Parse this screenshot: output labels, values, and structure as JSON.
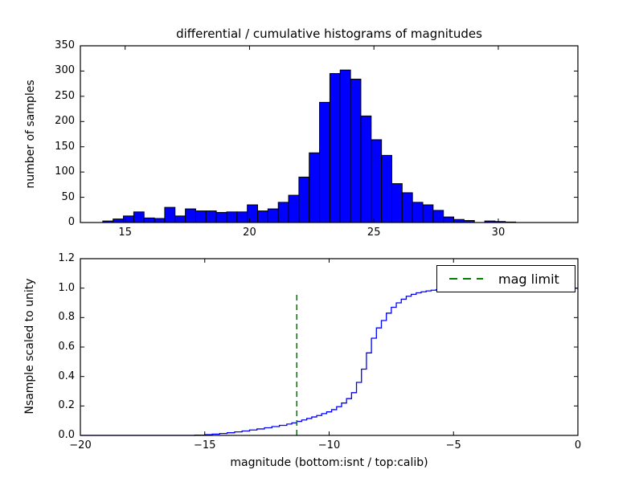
{
  "figure": {
    "background": "#ffffff",
    "text_color": "#000000"
  },
  "chart_data": [
    {
      "type": "bar",
      "subplot": "top",
      "title": "differential / cumulative histograms of magnitudes",
      "ylabel": "number of samples",
      "bar_color": "#0000ff",
      "bar_edge_color": "#000000",
      "bin_start": 14.1,
      "bin_width": 0.415,
      "values": [
        3,
        7,
        13,
        21,
        9,
        8,
        30,
        13,
        27,
        23,
        23,
        20,
        21,
        21,
        35,
        23,
        27,
        40,
        54,
        90,
        138,
        238,
        295,
        302,
        284,
        211,
        164,
        133,
        77,
        59,
        40,
        35,
        24,
        11,
        6,
        4,
        0,
        3,
        2,
        1
      ],
      "xlim": [
        13.2,
        33.2
      ],
      "ylim": [
        0,
        350
      ],
      "xticks": [
        15,
        20,
        25,
        30
      ],
      "xtick_labels": [
        "15",
        "20",
        "25",
        "30"
      ],
      "yticks": [
        0,
        50,
        100,
        150,
        200,
        250,
        300,
        350
      ],
      "ytick_labels": [
        "0",
        "50",
        "100",
        "150",
        "200",
        "250",
        "300",
        "350"
      ],
      "grid": false
    },
    {
      "type": "line",
      "subplot": "bottom",
      "style": "step",
      "ylabel": "Nsample scaled to unity",
      "xlabel": "magnitude (bottom:isnt / top:calib)",
      "line_color": "#0000ff",
      "xlim": [
        -20,
        0
      ],
      "ylim": [
        0,
        1.2
      ],
      "xticks": [
        -20,
        -15,
        -10,
        -5,
        0
      ],
      "xtick_labels": [
        "−20",
        "−15",
        "−10",
        "−5",
        "0"
      ],
      "yticks": [
        0,
        0.2,
        0.4,
        0.6,
        0.8,
        1.0,
        1.2
      ],
      "ytick_labels": [
        "0.0",
        "0.2",
        "0.4",
        "0.6",
        "0.8",
        "1.0",
        "1.2"
      ],
      "step_points": [
        [
          -15.4,
          0.002
        ],
        [
          -15.0,
          0.005
        ],
        [
          -14.7,
          0.009
        ],
        [
          -14.4,
          0.013
        ],
        [
          -14.1,
          0.018
        ],
        [
          -13.8,
          0.024
        ],
        [
          -13.5,
          0.03
        ],
        [
          -13.2,
          0.037
        ],
        [
          -12.9,
          0.044
        ],
        [
          -12.6,
          0.052
        ],
        [
          -12.3,
          0.06
        ],
        [
          -12.0,
          0.068
        ],
        [
          -11.7,
          0.077
        ],
        [
          -11.5,
          0.085
        ],
        [
          -11.3,
          0.095
        ],
        [
          -11.1,
          0.105
        ],
        [
          -10.9,
          0.115
        ],
        [
          -10.7,
          0.125
        ],
        [
          -10.5,
          0.135
        ],
        [
          -10.3,
          0.148
        ],
        [
          -10.1,
          0.16
        ],
        [
          -9.9,
          0.175
        ],
        [
          -9.7,
          0.195
        ],
        [
          -9.5,
          0.22
        ],
        [
          -9.3,
          0.25
        ],
        [
          -9.1,
          0.29
        ],
        [
          -8.9,
          0.36
        ],
        [
          -8.7,
          0.45
        ],
        [
          -8.5,
          0.56
        ],
        [
          -8.3,
          0.66
        ],
        [
          -8.1,
          0.73
        ],
        [
          -7.9,
          0.78
        ],
        [
          -7.7,
          0.83
        ],
        [
          -7.5,
          0.87
        ],
        [
          -7.3,
          0.9
        ],
        [
          -7.1,
          0.925
        ],
        [
          -6.9,
          0.945
        ],
        [
          -6.7,
          0.958
        ],
        [
          -6.5,
          0.968
        ],
        [
          -6.3,
          0.975
        ],
        [
          -6.1,
          0.981
        ],
        [
          -5.9,
          0.986
        ],
        [
          -5.7,
          0.99
        ],
        [
          -5.5,
          0.997
        ],
        [
          -5.3,
          1.0
        ]
      ],
      "mag_limit_line": {
        "x": -11.3,
        "y_bottom": 0,
        "y_top": 0.97,
        "color": "#008000",
        "style": "dashed"
      },
      "legend": {
        "label": "mag limit",
        "position": "upper right",
        "line_color": "#008000",
        "line_style": "dashed"
      },
      "grid": false
    }
  ]
}
